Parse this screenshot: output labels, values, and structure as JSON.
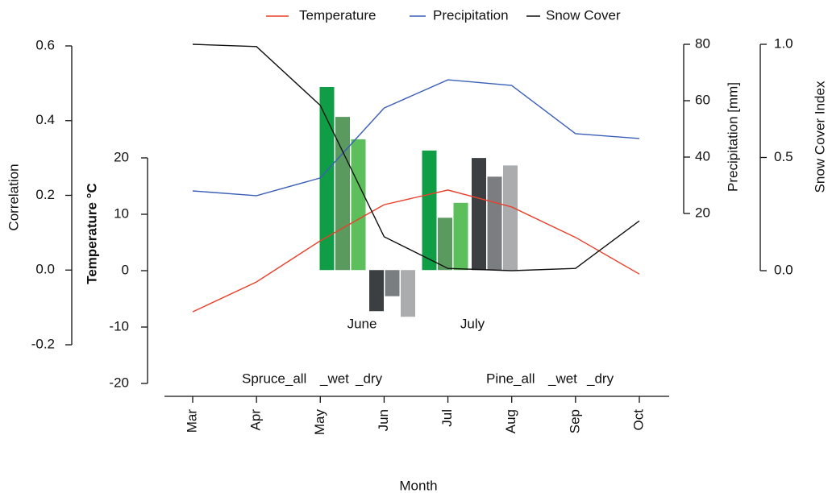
{
  "chart_data": {
    "type": "line",
    "x_label": "Month",
    "categories": [
      "Mar",
      "Apr",
      "May",
      "Jun",
      "Jul",
      "Aug",
      "Sep",
      "Oct"
    ],
    "ylabel": "Correlation",
    "ylim": [
      -0.2,
      0.6
    ],
    "yticks": [
      -0.2,
      {
        "value": 0,
        "label": "0.0"
      },
      0.2,
      0.4,
      0.6
    ],
    "temp_axis": {
      "label": "Temperature °C",
      "lim": [
        -20,
        20
      ],
      "ticks": [
        -20,
        -10,
        0,
        10,
        20
      ]
    },
    "y2label": "Precipitation [mm]",
    "y2lim": [
      20,
      80
    ],
    "y2ticks": [
      20,
      40,
      60,
      80
    ],
    "y3label": "Snow Cover Index",
    "y3lim": [
      0,
      1
    ],
    "y3ticks": [
      {
        "value": 0,
        "label": "0.0"
      },
      0.5,
      {
        "value": 1,
        "label": "1.0"
      }
    ],
    "series": [
      {
        "name": "Temperature",
        "color": "#e8412c",
        "axis": "temp",
        "values": [
          -7.3,
          -2,
          5.3,
          11.7,
          14.3,
          11.3,
          5.9,
          -0.6
        ]
      },
      {
        "name": "Precipitation",
        "color": "#3a5fb8",
        "axis": "y2",
        "values": [
          28,
          26.3,
          32.6,
          57.4,
          67.4,
          65.4,
          48.3,
          46.6
        ]
      },
      {
        "name": "Snow Cover",
        "color": "#111111",
        "axis": "y3",
        "values": [
          1.0,
          0.99,
          0.73,
          0.15,
          0.01,
          0.0,
          0.01,
          0.22
        ]
      }
    ],
    "bar_groups": [
      "June",
      "July"
    ],
    "bar_series": [
      {
        "name": "Spruce_all",
        "color": "#0f9e45",
        "values": [
          0.49,
          0.32
        ]
      },
      {
        "name": "_wet",
        "color": "#5a9a5e",
        "values": [
          0.41,
          0.14
        ]
      },
      {
        "name": "_dry",
        "color": "#5cbf5c",
        "values": [
          0.35,
          0.18
        ]
      },
      {
        "name": "Pine_all",
        "color": "#3c3f42",
        "values": [
          -0.11,
          0.3
        ]
      },
      {
        "name": "_wet",
        "color": "#7b7e80",
        "values": [
          -0.07,
          0.25
        ]
      },
      {
        "name": "_dry",
        "color": "#aaacae",
        "values": [
          -0.125,
          0.28
        ]
      }
    ]
  }
}
